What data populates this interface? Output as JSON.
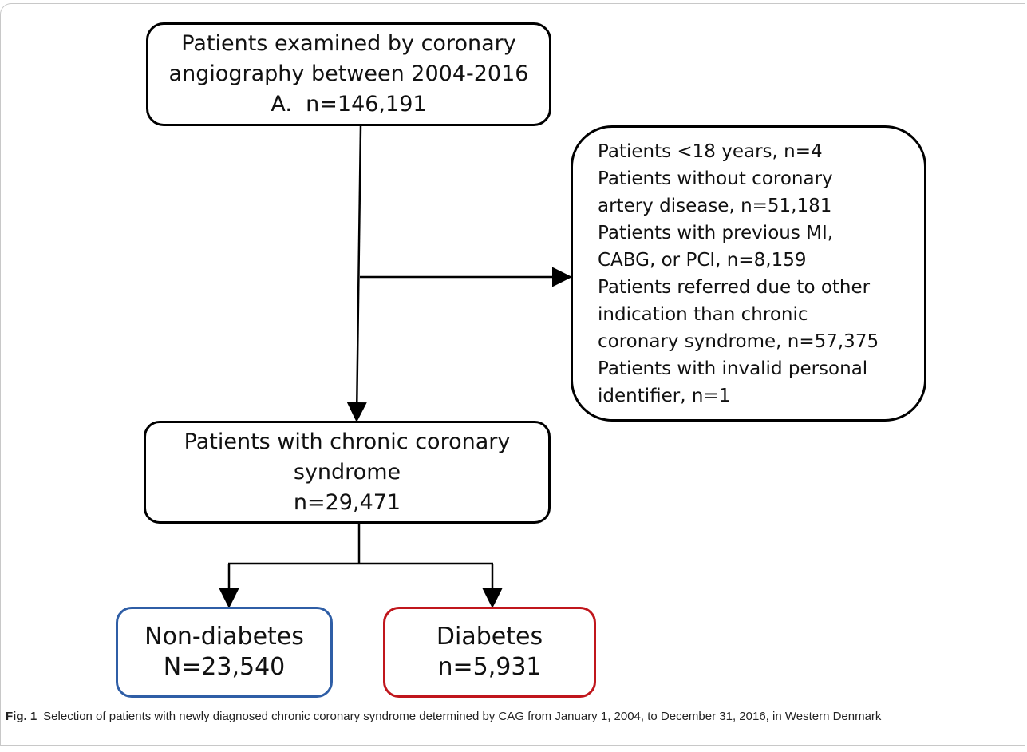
{
  "nodes": [
    {
      "lines": [
        "Patients examined by coronary",
        "angiography between 2004-2016",
        "A.  n=146,191"
      ]
    },
    {
      "lines": [
        "Patients <18 years, n=4",
        "Patients without coronary",
        "artery disease, n=51,181",
        "Patients with previous MI,",
        "CABG, or PCI, n=8,159",
        "Patients referred due to other",
        "indication than chronic",
        "coronary syndrome, n=57,375",
        "Patients with invalid personal",
        "identifier, n=1"
      ]
    },
    {
      "lines": [
        "Patients with chronic coronary",
        "syndrome",
        "n=29,471"
      ]
    },
    {
      "lines": [
        "Non-diabetes",
        "N=23,540"
      ]
    },
    {
      "lines": [
        "Diabetes",
        "n=5,931"
      ]
    }
  ],
  "caption": {
    "label": "Fig. 1",
    "text": "Selection of patients with newly diagnosed chronic coronary syndrome determined by CAG from January 1, 2004, to December 31, 2016, in Western Denmark"
  }
}
